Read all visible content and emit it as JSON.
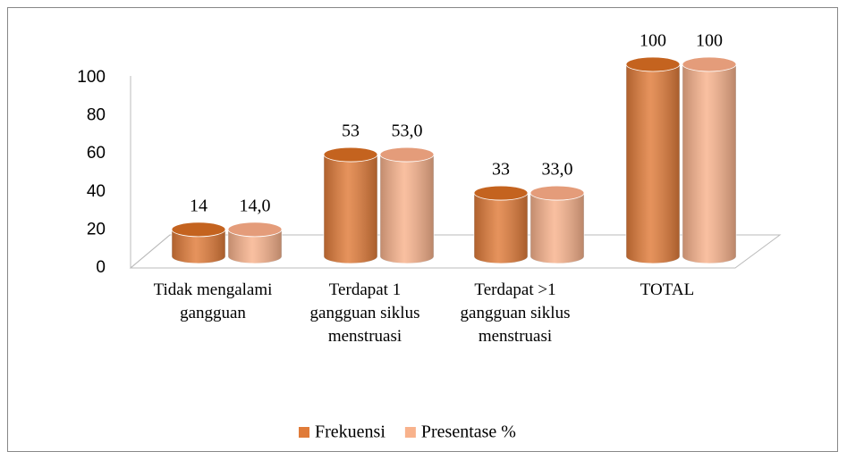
{
  "chart_data": {
    "type": "bar3d",
    "categories": [
      "Tidak mengalami gangguan",
      "Terdapat 1 gangguan siklus menstruasi",
      "Terdapat >1 gangguan siklus menstruasi",
      "TOTAL"
    ],
    "series": [
      {
        "name": "Frekuensi",
        "color": "#e07b39",
        "top_color": "#c4631f",
        "values": [
          14,
          53,
          33,
          100
        ]
      },
      {
        "name": "Presentase %",
        "color": "#f8b28c",
        "top_color": "#e49c7a",
        "values": [
          14,
          53,
          33,
          100
        ],
        "value_labels": [
          "14,0",
          "53,0",
          "33,0",
          "100"
        ]
      }
    ],
    "ylim": [
      0,
      100
    ],
    "yticks": [
      0,
      20,
      40,
      60,
      80,
      100
    ],
    "grid": false,
    "legend": "bottom"
  }
}
